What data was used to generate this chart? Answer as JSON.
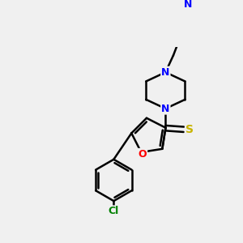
{
  "background_color": "#f0f0f0",
  "bond_color": "#000000",
  "bond_width": 1.8,
  "figsize": [
    3.0,
    3.0
  ],
  "dpi": 100,
  "atom_colors": {
    "N": "#0000ff",
    "O": "#ff0000",
    "S": "#c8b400",
    "Cl": "#008000",
    "C": "#000000"
  }
}
